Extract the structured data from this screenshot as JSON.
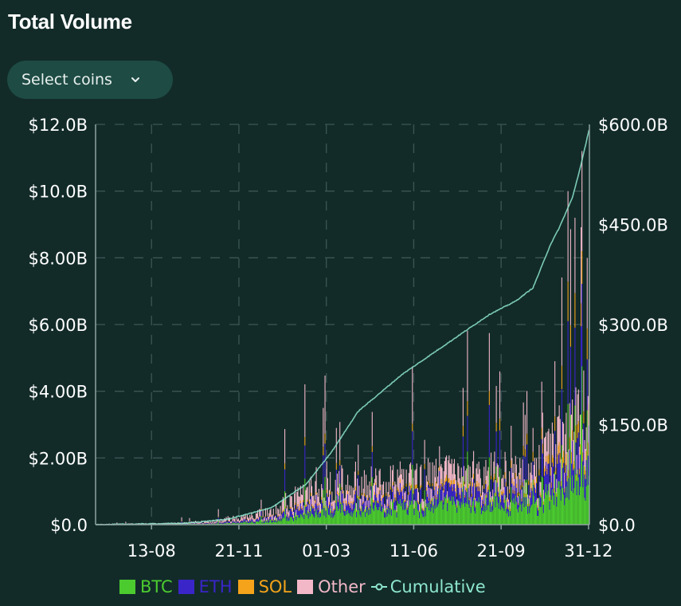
{
  "header": {
    "title": "Total Volume"
  },
  "controls": {
    "select_coins_label": "Select coins"
  },
  "colors": {
    "BTC": "#4ccb2f",
    "ETH": "#3a25c9",
    "SOL": "#f4a31a",
    "Other": "#f3b8c8",
    "Cumulative": "#8ee6cf",
    "grid": "#3c5654",
    "axis": "#8fa3a0"
  },
  "chart_data": {
    "type": "bar",
    "stacked": true,
    "title": "Total Volume",
    "y_left": {
      "min": 0,
      "max": 12000000000,
      "ticks": [
        "$0.0",
        "$2.00B",
        "$4.00B",
        "$6.00B",
        "$8.00B",
        "$10.0B",
        "$12.0B"
      ]
    },
    "y_right": {
      "min": 0,
      "max": 600000000000,
      "ticks": [
        "$0.0",
        "$150.0B",
        "$300.0B",
        "$450.0B",
        "$600.0B"
      ]
    },
    "x_ticks": [
      "13-08",
      "21-11",
      "01-03",
      "11-06",
      "21-09",
      "31-12"
    ],
    "x_tick_day_index": [
      64,
      164,
      264,
      364,
      464,
      564
    ],
    "n_days": 565,
    "series": [
      {
        "name": "BTC",
        "anchors": [
          [
            0,
            0.002
          ],
          [
            100,
            0.01
          ],
          [
            150,
            0.03
          ],
          [
            200,
            0.1
          ],
          [
            260,
            0.35
          ],
          [
            320,
            0.4
          ],
          [
            400,
            0.45
          ],
          [
            500,
            0.5
          ],
          [
            530,
            0.8
          ],
          [
            564,
            1.3
          ]
        ]
      },
      {
        "name": "ETH",
        "anchors": [
          [
            0,
            0.001
          ],
          [
            100,
            0.008
          ],
          [
            150,
            0.03
          ],
          [
            200,
            0.07
          ],
          [
            260,
            0.25
          ],
          [
            320,
            0.25
          ],
          [
            400,
            0.28
          ],
          [
            500,
            0.3
          ],
          [
            530,
            0.55
          ],
          [
            564,
            0.9
          ]
        ]
      },
      {
        "name": "SOL",
        "anchors": [
          [
            0,
            0.0
          ],
          [
            150,
            0.005
          ],
          [
            200,
            0.02
          ],
          [
            260,
            0.07
          ],
          [
            320,
            0.06
          ],
          [
            400,
            0.08
          ],
          [
            500,
            0.1
          ],
          [
            530,
            0.2
          ],
          [
            564,
            0.35
          ]
        ]
      },
      {
        "name": "Other",
        "anchors": [
          [
            0,
            0.01
          ],
          [
            100,
            0.02
          ],
          [
            150,
            0.06
          ],
          [
            200,
            0.15
          ],
          [
            260,
            0.45
          ],
          [
            320,
            0.35
          ],
          [
            400,
            0.35
          ],
          [
            500,
            0.4
          ],
          [
            530,
            0.7
          ],
          [
            564,
            0.95
          ]
        ]
      }
    ],
    "spikes": [
      {
        "day": 260,
        "total": 3.5
      },
      {
        "day": 275,
        "total": 2.9
      },
      {
        "day": 300,
        "total": 2.4
      },
      {
        "day": 420,
        "total": 4.1
      },
      {
        "day": 500,
        "total": 2.9
      },
      {
        "day": 525,
        "total": 4.9
      },
      {
        "day": 540,
        "total": 10.0
      },
      {
        "day": 548,
        "total": 9.2
      },
      {
        "day": 556,
        "total": 11.2
      },
      {
        "day": 562,
        "total": 8.0
      }
    ],
    "cumulative": {
      "name": "Cumulative",
      "points": [
        [
          0,
          0
        ],
        [
          100,
          2
        ],
        [
          150,
          8
        ],
        [
          200,
          25
        ],
        [
          240,
          60
        ],
        [
          270,
          110
        ],
        [
          300,
          170
        ],
        [
          350,
          225
        ],
        [
          400,
          270
        ],
        [
          450,
          315
        ],
        [
          480,
          335
        ],
        [
          500,
          355
        ],
        [
          520,
          420
        ],
        [
          530,
          445
        ],
        [
          545,
          490
        ],
        [
          555,
          540
        ],
        [
          564,
          592
        ]
      ]
    },
    "legend": [
      "BTC",
      "ETH",
      "SOL",
      "Other",
      "Cumulative"
    ],
    "legend_position": "bottom"
  }
}
